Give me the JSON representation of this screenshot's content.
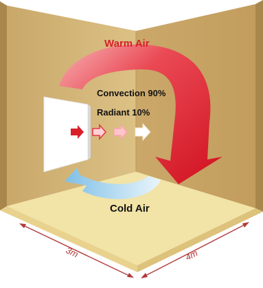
{
  "labels": {
    "warm_air": "Warm Air",
    "cold_air": "Cold Air",
    "convection": "Convection 90%",
    "radiant": "Radiant 10%",
    "dim_left": "3m",
    "dim_right": "4m"
  },
  "colors": {
    "wall_left": "#d6b97c",
    "wall_right": "#caa867",
    "wall_edge": "#a8874c",
    "floor": "#f2e3a6",
    "warm_arrow": "#e0202e",
    "cold_arrow": "#8ec8ea",
    "warm_text": "#d81f2a",
    "dimension_line": "#b23a3a"
  },
  "icons": [
    "heater-panel",
    "radiant-heat-arrows",
    "warm-air-arrow",
    "cold-air-arrow",
    "dimension-arrow"
  ]
}
